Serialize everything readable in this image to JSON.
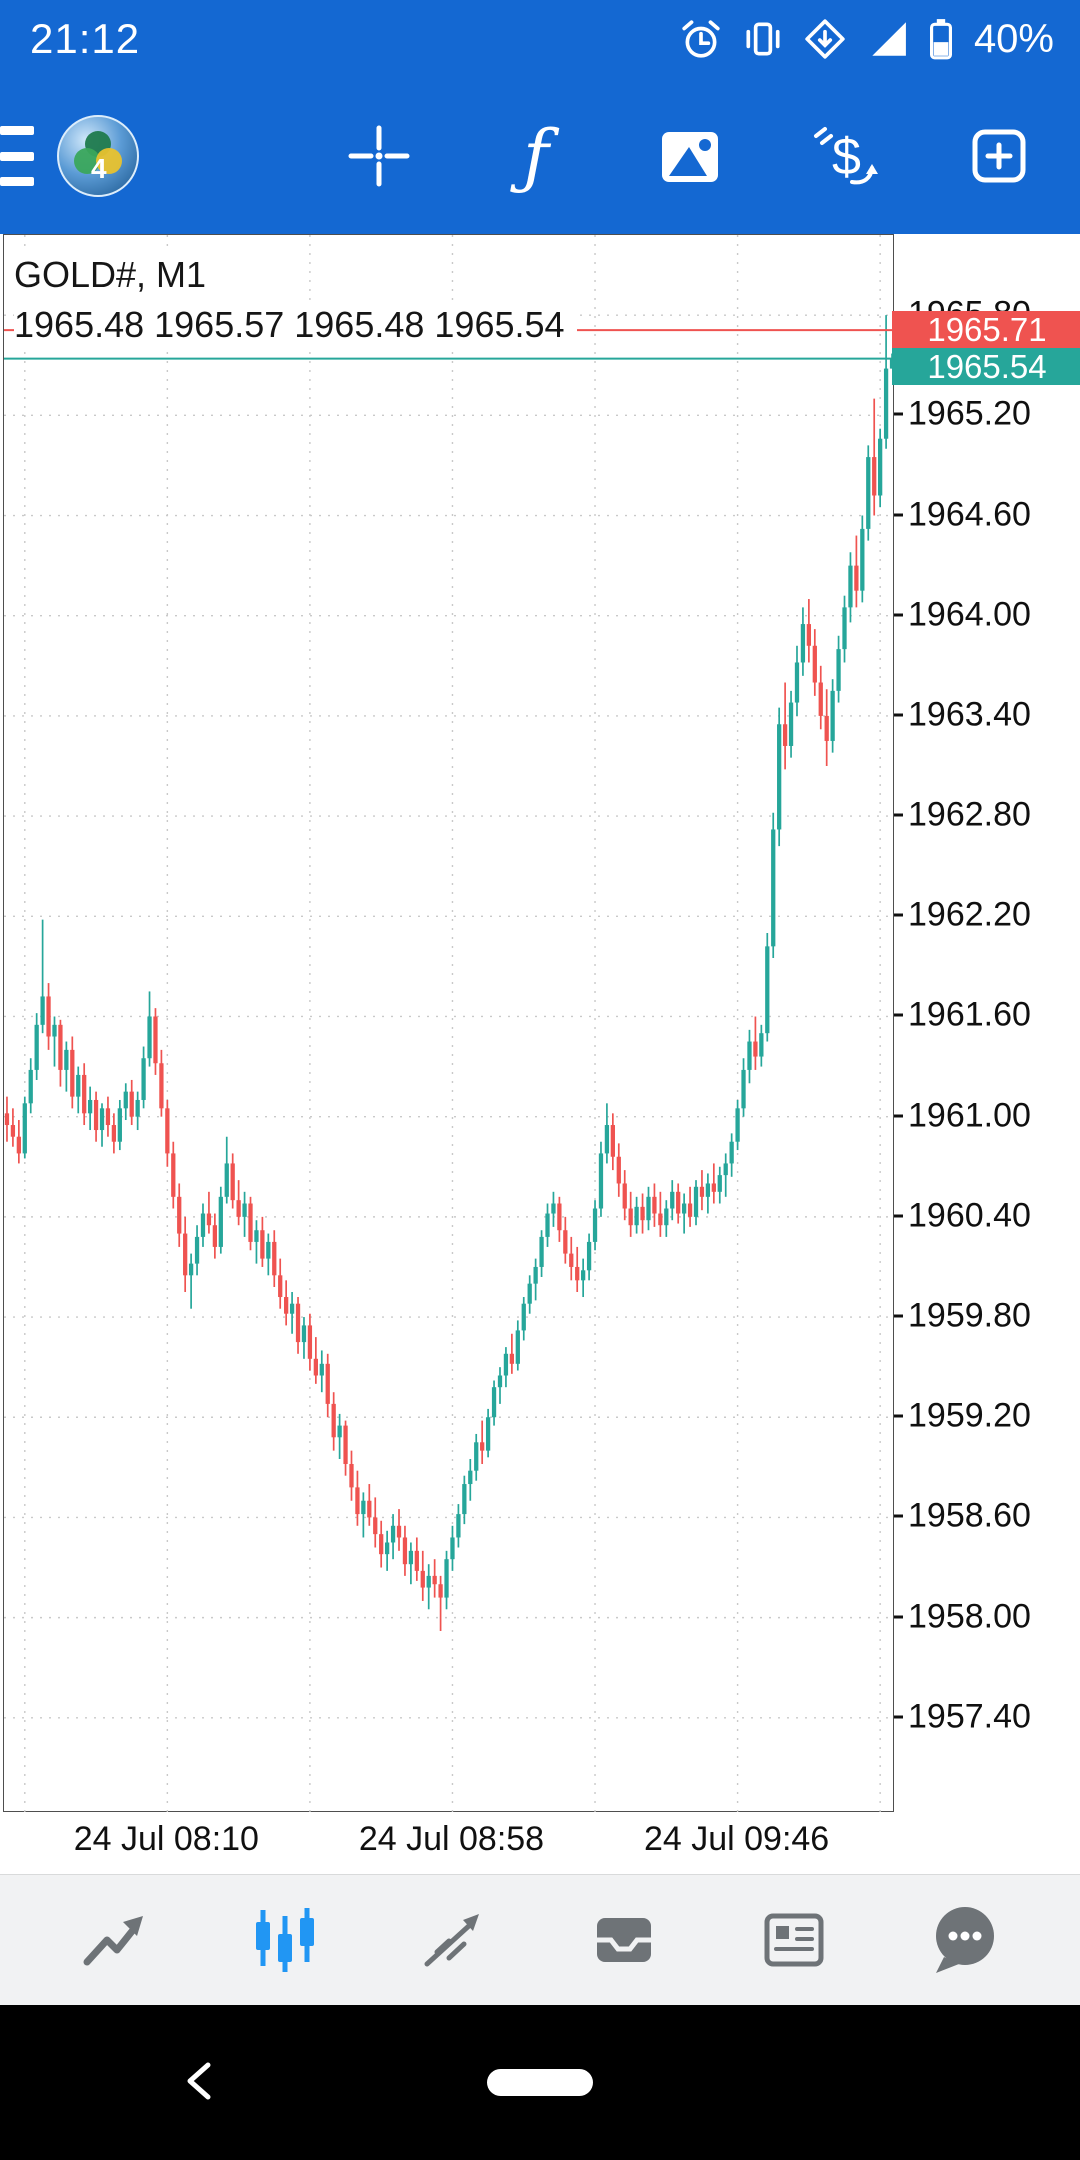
{
  "theme": {
    "top_bar_blue": "#1468d2",
    "active_icon_blue": "#2196f3",
    "inactive_icon_gray": "#6e7377"
  },
  "status_bar": {
    "time": "21:12",
    "battery_percent": "40%"
  },
  "chart": {
    "title_line": "GOLD#, M1",
    "ohlc_line": "1965.48 1965.57 1965.48 1965.54"
  },
  "chart_data": {
    "type": "candlestick",
    "symbol": "GOLD#",
    "timeframe": "M1",
    "current_ohlc": {
      "open": 1965.48,
      "high": 1965.57,
      "low": 1965.48,
      "close": 1965.54
    },
    "ask": 1965.71,
    "ask_label": "1965.71",
    "bid": 1965.54,
    "bid_label": "1965.54",
    "colors": {
      "up": "#26a69a",
      "down": "#ef5350",
      "ask_line": "#ef5350",
      "bid_line": "#26a69a"
    },
    "axis": {
      "price_top": 1966.28,
      "price_bottom": 1956.83,
      "y_ticks": [
        "1965.80",
        "1965.20",
        "1964.60",
        "1964.00",
        "1963.40",
        "1962.80",
        "1962.20",
        "1961.60",
        "1961.00",
        "1960.40",
        "1959.80",
        "1959.20",
        "1958.60",
        "1958.00",
        "1957.40"
      ],
      "x_labels": [
        {
          "index": 27,
          "label": "24 Jul 08:10"
        },
        {
          "index": 75,
          "label": "24 Jul 08:58"
        },
        {
          "index": 123,
          "label": "24 Jul 09:46"
        }
      ],
      "v_grid_indices": [
        3,
        27,
        51,
        75,
        99,
        123,
        147
      ]
    },
    "candles": [
      [
        1961.02,
        1961.12,
        1960.85,
        1960.95
      ],
      [
        1960.95,
        1961.05,
        1960.82,
        1960.88
      ],
      [
        1960.88,
        1960.98,
        1960.72,
        1960.78
      ],
      [
        1960.78,
        1961.12,
        1960.75,
        1961.08
      ],
      [
        1961.08,
        1961.35,
        1961.02,
        1961.28
      ],
      [
        1961.28,
        1961.62,
        1961.22,
        1961.55
      ],
      [
        1961.55,
        1962.18,
        1961.5,
        1961.72
      ],
      [
        1961.72,
        1961.8,
        1961.4,
        1961.48
      ],
      [
        1961.48,
        1961.6,
        1961.3,
        1961.55
      ],
      [
        1961.55,
        1961.58,
        1961.18,
        1961.28
      ],
      [
        1961.28,
        1961.45,
        1961.15,
        1961.4
      ],
      [
        1961.4,
        1961.48,
        1961.05,
        1961.12
      ],
      [
        1961.12,
        1961.3,
        1961.02,
        1961.25
      ],
      [
        1961.25,
        1961.32,
        1960.95,
        1961.02
      ],
      [
        1961.02,
        1961.18,
        1960.92,
        1961.1
      ],
      [
        1961.1,
        1961.15,
        1960.85,
        1960.92
      ],
      [
        1960.92,
        1961.08,
        1960.82,
        1961.05
      ],
      [
        1961.05,
        1961.12,
        1960.88,
        1960.95
      ],
      [
        1960.95,
        1961.02,
        1960.78,
        1960.85
      ],
      [
        1960.85,
        1961.1,
        1960.8,
        1961.05
      ],
      [
        1961.05,
        1961.2,
        1960.98,
        1961.15
      ],
      [
        1961.15,
        1961.22,
        1960.95,
        1961.0
      ],
      [
        1961.0,
        1961.15,
        1960.92,
        1961.1
      ],
      [
        1961.1,
        1961.42,
        1961.05,
        1961.35
      ],
      [
        1961.35,
        1961.75,
        1961.3,
        1961.6
      ],
      [
        1961.6,
        1961.65,
        1961.25,
        1961.32
      ],
      [
        1961.32,
        1961.4,
        1961.0,
        1961.05
      ],
      [
        1961.05,
        1961.1,
        1960.7,
        1960.78
      ],
      [
        1960.78,
        1960.85,
        1960.45,
        1960.52
      ],
      [
        1960.52,
        1960.6,
        1960.22,
        1960.3
      ],
      [
        1960.3,
        1960.4,
        1959.95,
        1960.05
      ],
      [
        1960.05,
        1960.18,
        1959.85,
        1960.12
      ],
      [
        1960.12,
        1960.35,
        1960.05,
        1960.28
      ],
      [
        1960.28,
        1960.48,
        1960.22,
        1960.42
      ],
      [
        1960.42,
        1960.55,
        1960.3,
        1960.35
      ],
      [
        1960.35,
        1960.42,
        1960.15,
        1960.22
      ],
      [
        1960.22,
        1960.58,
        1960.18,
        1960.52
      ],
      [
        1960.52,
        1960.88,
        1960.48,
        1960.72
      ],
      [
        1960.72,
        1960.78,
        1960.45,
        1960.5
      ],
      [
        1960.5,
        1960.62,
        1960.35,
        1960.4
      ],
      [
        1960.4,
        1960.55,
        1960.28,
        1960.48
      ],
      [
        1960.48,
        1960.52,
        1960.2,
        1960.25
      ],
      [
        1960.25,
        1960.38,
        1960.12,
        1960.32
      ],
      [
        1960.32,
        1960.4,
        1960.1,
        1960.15
      ],
      [
        1960.15,
        1960.3,
        1960.05,
        1960.25
      ],
      [
        1960.25,
        1960.32,
        1959.98,
        1960.05
      ],
      [
        1960.05,
        1960.15,
        1959.85,
        1959.92
      ],
      [
        1959.92,
        1960.02,
        1959.75,
        1959.82
      ],
      [
        1959.82,
        1959.95,
        1959.7,
        1959.88
      ],
      [
        1959.88,
        1959.92,
        1959.58,
        1959.65
      ],
      [
        1959.65,
        1959.8,
        1959.55,
        1959.75
      ],
      [
        1959.75,
        1959.82,
        1959.48,
        1959.55
      ],
      [
        1959.55,
        1959.68,
        1959.4,
        1959.45
      ],
      [
        1959.45,
        1959.6,
        1959.35,
        1959.52
      ],
      [
        1959.52,
        1959.58,
        1959.2,
        1959.28
      ],
      [
        1959.28,
        1959.35,
        1959.0,
        1959.08
      ],
      [
        1959.08,
        1959.22,
        1958.95,
        1959.15
      ],
      [
        1959.15,
        1959.18,
        1958.85,
        1958.92
      ],
      [
        1958.92,
        1959.0,
        1958.7,
        1958.78
      ],
      [
        1958.78,
        1958.88,
        1958.55,
        1958.62
      ],
      [
        1958.62,
        1958.75,
        1958.48,
        1958.7
      ],
      [
        1958.7,
        1958.8,
        1958.55,
        1958.6
      ],
      [
        1958.6,
        1958.72,
        1958.42,
        1958.5
      ],
      [
        1958.5,
        1958.58,
        1958.3,
        1958.38
      ],
      [
        1958.38,
        1958.52,
        1958.28,
        1958.45
      ],
      [
        1958.45,
        1958.62,
        1958.35,
        1958.55
      ],
      [
        1958.55,
        1958.65,
        1958.4,
        1958.48
      ],
      [
        1958.48,
        1958.55,
        1958.25,
        1958.32
      ],
      [
        1958.32,
        1958.45,
        1958.2,
        1958.4
      ],
      [
        1958.4,
        1958.48,
        1958.22,
        1958.28
      ],
      [
        1958.28,
        1958.4,
        1958.1,
        1958.18
      ],
      [
        1958.18,
        1958.32,
        1958.05,
        1958.25
      ],
      [
        1958.25,
        1958.35,
        1958.12,
        1958.2
      ],
      [
        1958.2,
        1958.25,
        1957.92,
        1958.12
      ],
      [
        1958.12,
        1958.4,
        1958.05,
        1958.35
      ],
      [
        1958.35,
        1958.55,
        1958.28,
        1958.48
      ],
      [
        1958.48,
        1958.68,
        1958.42,
        1958.62
      ],
      [
        1958.62,
        1958.85,
        1958.56,
        1958.8
      ],
      [
        1958.8,
        1958.95,
        1958.7,
        1958.88
      ],
      [
        1958.88,
        1959.1,
        1958.82,
        1959.05
      ],
      [
        1959.05,
        1959.18,
        1958.92,
        1959.0
      ],
      [
        1959.0,
        1959.25,
        1958.96,
        1959.2
      ],
      [
        1959.2,
        1959.42,
        1959.15,
        1959.38
      ],
      [
        1959.38,
        1959.5,
        1959.28,
        1959.45
      ],
      [
        1959.45,
        1959.62,
        1959.38,
        1959.58
      ],
      [
        1959.58,
        1959.7,
        1959.46,
        1959.52
      ],
      [
        1959.52,
        1959.78,
        1959.48,
        1959.72
      ],
      [
        1959.72,
        1959.92,
        1959.66,
        1959.88
      ],
      [
        1959.88,
        1960.05,
        1959.82,
        1960.0
      ],
      [
        1960.0,
        1960.15,
        1959.9,
        1960.1
      ],
      [
        1960.1,
        1960.32,
        1960.04,
        1960.28
      ],
      [
        1960.28,
        1960.48,
        1960.22,
        1960.42
      ],
      [
        1960.42,
        1960.55,
        1960.34,
        1960.48
      ],
      [
        1960.48,
        1960.52,
        1960.25,
        1960.32
      ],
      [
        1960.32,
        1960.4,
        1960.12,
        1960.18
      ],
      [
        1960.18,
        1960.28,
        1960.02,
        1960.1
      ],
      [
        1960.1,
        1960.22,
        1959.95,
        1960.02
      ],
      [
        1960.02,
        1960.15,
        1959.92,
        1960.08
      ],
      [
        1960.08,
        1960.3,
        1960.02,
        1960.25
      ],
      [
        1960.25,
        1960.5,
        1960.2,
        1960.45
      ],
      [
        1960.45,
        1960.85,
        1960.4,
        1960.78
      ],
      [
        1960.78,
        1961.08,
        1960.72,
        1960.95
      ],
      [
        1960.95,
        1961.02,
        1960.68,
        1960.76
      ],
      [
        1960.76,
        1960.84,
        1960.52,
        1960.6
      ],
      [
        1960.6,
        1960.68,
        1960.38,
        1960.45
      ],
      [
        1960.45,
        1960.55,
        1960.28,
        1960.35
      ],
      [
        1960.35,
        1960.52,
        1960.3,
        1960.46
      ],
      [
        1960.46,
        1960.54,
        1960.3,
        1960.38
      ],
      [
        1960.38,
        1960.58,
        1960.32,
        1960.52
      ],
      [
        1960.52,
        1960.6,
        1960.34,
        1960.42
      ],
      [
        1960.42,
        1960.55,
        1960.28,
        1960.35
      ],
      [
        1960.35,
        1960.5,
        1960.28,
        1960.45
      ],
      [
        1960.45,
        1960.62,
        1960.38,
        1960.55
      ],
      [
        1960.55,
        1960.6,
        1960.36,
        1960.42
      ],
      [
        1960.42,
        1960.54,
        1960.3,
        1960.48
      ],
      [
        1960.48,
        1960.58,
        1960.34,
        1960.4
      ],
      [
        1960.4,
        1960.62,
        1960.35,
        1960.58
      ],
      [
        1960.58,
        1960.68,
        1960.44,
        1960.52
      ],
      [
        1960.52,
        1960.66,
        1960.42,
        1960.6
      ],
      [
        1960.6,
        1960.72,
        1960.48,
        1960.55
      ],
      [
        1960.55,
        1960.7,
        1960.48,
        1960.65
      ],
      [
        1960.65,
        1960.78,
        1960.52,
        1960.72
      ],
      [
        1960.72,
        1960.9,
        1960.64,
        1960.85
      ],
      [
        1960.85,
        1961.1,
        1960.8,
        1961.05
      ],
      [
        1961.05,
        1961.35,
        1961.0,
        1961.28
      ],
      [
        1961.28,
        1961.52,
        1961.2,
        1961.45
      ],
      [
        1961.45,
        1961.6,
        1961.28,
        1961.36
      ],
      [
        1961.36,
        1961.55,
        1961.3,
        1961.5
      ],
      [
        1961.5,
        1962.1,
        1961.45,
        1962.02
      ],
      [
        1962.02,
        1962.82,
        1961.95,
        1962.72
      ],
      [
        1962.72,
        1963.45,
        1962.62,
        1963.35
      ],
      [
        1963.35,
        1963.6,
        1963.08,
        1963.22
      ],
      [
        1963.22,
        1963.55,
        1963.15,
        1963.48
      ],
      [
        1963.48,
        1963.82,
        1963.4,
        1963.72
      ],
      [
        1963.72,
        1964.05,
        1963.64,
        1963.95
      ],
      [
        1963.95,
        1964.1,
        1963.72,
        1963.82
      ],
      [
        1963.82,
        1963.92,
        1963.52,
        1963.6
      ],
      [
        1963.6,
        1963.7,
        1963.32,
        1963.4
      ],
      [
        1963.4,
        1963.56,
        1963.1,
        1963.25
      ],
      [
        1963.25,
        1963.62,
        1963.18,
        1963.55
      ],
      [
        1963.55,
        1963.88,
        1963.48,
        1963.8
      ],
      [
        1963.8,
        1964.12,
        1963.72,
        1964.05
      ],
      [
        1964.05,
        1964.38,
        1963.96,
        1964.3
      ],
      [
        1964.3,
        1964.48,
        1964.05,
        1964.15
      ],
      [
        1964.15,
        1964.6,
        1964.08,
        1964.52
      ],
      [
        1964.52,
        1965.02,
        1964.45,
        1964.95
      ],
      [
        1964.95,
        1965.3,
        1964.6,
        1964.72
      ],
      [
        1964.72,
        1965.12,
        1964.65,
        1965.06
      ],
      [
        1965.06,
        1965.8,
        1965.0,
        1965.48
      ],
      [
        1965.48,
        1965.57,
        1965.48,
        1965.54
      ]
    ]
  },
  "bottom_nav": {
    "active_index": 1,
    "items": [
      {
        "icon": "quotes-trend-icon"
      },
      {
        "icon": "candlestick-chart-icon"
      },
      {
        "icon": "trade-line-icon"
      },
      {
        "icon": "history-tray-icon"
      },
      {
        "icon": "news-icon"
      },
      {
        "icon": "messages-bubble-icon"
      }
    ]
  },
  "nav_bar": {
    "icons": [
      "back-icon",
      "home-pill"
    ]
  }
}
